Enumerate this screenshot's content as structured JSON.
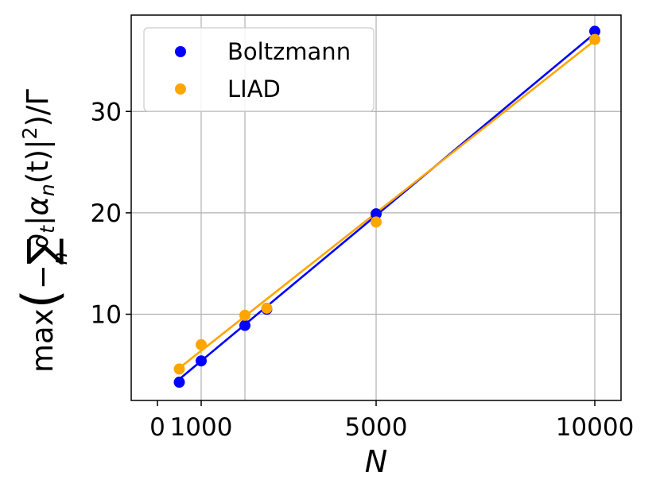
{
  "chart_data": {
    "type": "scatter",
    "xlabel": "N",
    "ylabel": "max(−∑∂|α(t)|²)/Γ",
    "ylabel_parts": {
      "prefix": "max",
      "minus": "−",
      "sum": "∑",
      "sum_sub": "n",
      "partial": "∂",
      "partial_sub": "t",
      "alpha": "α",
      "alpha_sub": "n",
      "arg": "(t)",
      "power": "2",
      "suffix": ")/Γ"
    },
    "xlim": [
      -600,
      10600
    ],
    "ylim": [
      1.5,
      39.5
    ],
    "x_ticks": [
      {
        "value": 0,
        "label": "0"
      },
      {
        "value": 1000,
        "label": "1000"
      },
      {
        "value": 5000,
        "label": "5000"
      },
      {
        "value": 10000,
        "label": "10000"
      }
    ],
    "y_ticks": [
      {
        "value": 10,
        "label": "10"
      },
      {
        "value": 20,
        "label": "20"
      },
      {
        "value": 30,
        "label": "30"
      }
    ],
    "x_grid": [
      1000,
      2000,
      5000,
      10000
    ],
    "grid": true,
    "legend_position": "top-left",
    "series": [
      {
        "name": "Boltzmann",
        "color": "#0000ff",
        "points": [
          [
            500,
            3.3
          ],
          [
            1000,
            5.4
          ],
          [
            2000,
            8.9
          ],
          [
            2500,
            10.5
          ],
          [
            5000,
            19.9
          ],
          [
            10000,
            37.9
          ]
        ],
        "fit": [
          [
            500,
            3.6
          ],
          [
            10000,
            37.7
          ]
        ]
      },
      {
        "name": "LIAD",
        "color": "#ffa500",
        "points": [
          [
            500,
            4.6
          ],
          [
            1000,
            7.0
          ],
          [
            2000,
            9.9
          ],
          [
            2500,
            10.6
          ],
          [
            5000,
            19.1
          ],
          [
            10000,
            37.1
          ]
        ],
        "fit": [
          [
            500,
            4.7
          ],
          [
            10000,
            37.0
          ]
        ]
      }
    ]
  }
}
